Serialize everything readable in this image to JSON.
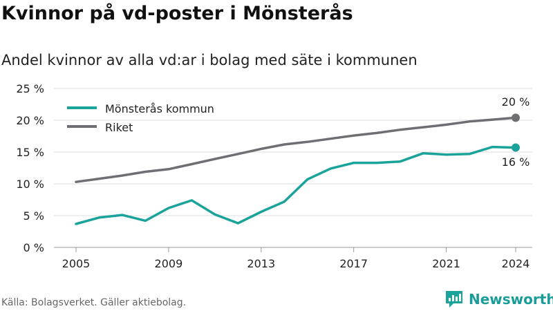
{
  "title": "Kvinnor på vd-poster i Mönsterås",
  "subtitle": "Andel kvinnor av alla vd:ar i bolag med säte i kommunen",
  "source": "Källa: Bolagsverket. Gäller aktiebolag.",
  "brand": "Newsworthy",
  "chart_data": {
    "type": "line",
    "x": [
      2005,
      2006,
      2007,
      2008,
      2009,
      2010,
      2011,
      2012,
      2013,
      2014,
      2015,
      2016,
      2017,
      2018,
      2019,
      2020,
      2021,
      2022,
      2023,
      2024
    ],
    "series": [
      {
        "name": "Mönsterås kommun",
        "color": "#1aa39a",
        "values": [
          3.7,
          4.7,
          5.1,
          4.2,
          6.2,
          7.4,
          5.2,
          3.8,
          5.6,
          7.2,
          10.7,
          12.4,
          13.3,
          13.3,
          13.5,
          14.8,
          14.6,
          14.7,
          15.8,
          15.7
        ]
      },
      {
        "name": "Riket",
        "color": "#6e6e73",
        "values": [
          10.3,
          10.8,
          11.3,
          11.9,
          12.3,
          13.1,
          13.9,
          14.7,
          15.5,
          16.2,
          16.6,
          17.1,
          17.6,
          18.0,
          18.5,
          18.9,
          19.3,
          19.8,
          20.1,
          20.4
        ]
      }
    ],
    "xticks": [
      2005,
      2009,
      2013,
      2017,
      2021,
      2024
    ],
    "yticks": [
      0,
      5,
      10,
      15,
      20,
      25
    ],
    "ytick_labels": [
      "0 %",
      "5 %",
      "10 %",
      "15 %",
      "20 %",
      "25 %"
    ],
    "xlim": [
      2005,
      2024
    ],
    "ylim": [
      0,
      25
    ],
    "grid": true,
    "legend_position": "top-left",
    "end_labels": {
      "riket": "20 %",
      "kommun": "16 %"
    }
  }
}
